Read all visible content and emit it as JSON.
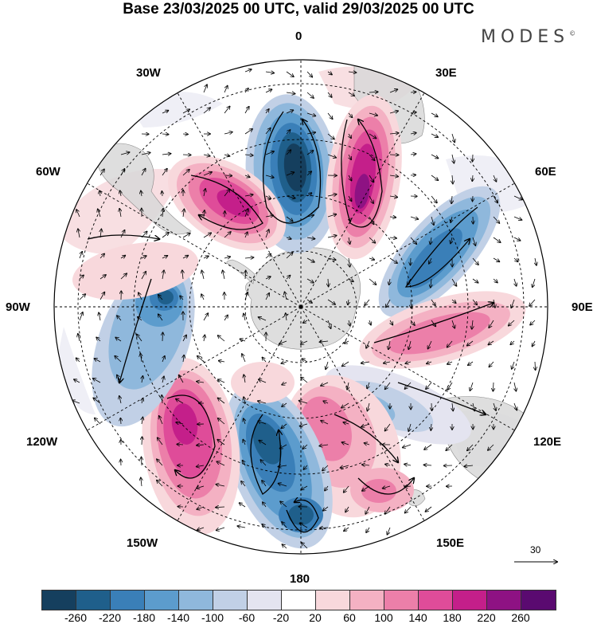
{
  "title": "Base 23/03/2025 00 UTC, valid 29/03/2025 00 UTC",
  "brand": "MODES",
  "brand_mark": "©",
  "longitude_labels": {
    "lon_0": "0",
    "lon_30e": "30E",
    "lon_60e": "60E",
    "lon_90e": "90E",
    "lon_120e": "120E",
    "lon_150e": "150E",
    "lon_180": "180",
    "lon_150w": "150W",
    "lon_120w": "120W",
    "lon_90w": "90W",
    "lon_60w": "60W",
    "lon_30w": "30W"
  },
  "reference_vector": "30",
  "colorbar": {
    "ticks": [
      "-260",
      "-220",
      "-180",
      "-140",
      "-100",
      "-60",
      "-20",
      "20",
      "60",
      "100",
      "140",
      "180",
      "220",
      "260"
    ],
    "colors": [
      "#153f5e",
      "#1f5f8b",
      "#3a7fb8",
      "#5c9ccd",
      "#8fb8dc",
      "#c1d0e6",
      "#e4e4f0",
      "#ffffff",
      "#f8d8dc",
      "#f4b1c3",
      "#ec7fa9",
      "#df4c99",
      "#c41f8a",
      "#8e1283",
      "#5a0a70"
    ]
  },
  "map_colors": {
    "land": "#d9d9d9",
    "ocean": "#ffffff"
  }
}
